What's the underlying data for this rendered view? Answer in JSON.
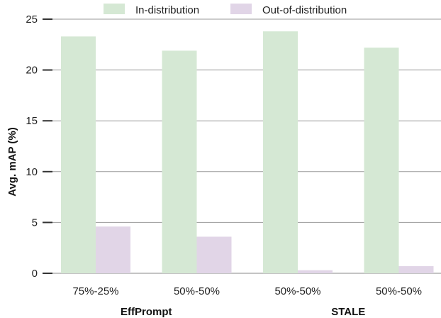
{
  "chart_data": {
    "type": "bar",
    "categories": [
      "75%-25%",
      "50%-50%",
      "50%-50%",
      "50%-50%"
    ],
    "groups": [
      {
        "label": "EffPrompt",
        "categories": [
          0,
          1
        ]
      },
      {
        "label": "STALE",
        "categories": [
          2,
          3
        ]
      }
    ],
    "series": [
      {
        "name": "In-distribution",
        "color": "#d5e8d4",
        "values": [
          23.3,
          21.9,
          23.8,
          22.2
        ]
      },
      {
        "name": "Out-of-distribution",
        "color": "#e1d5e7",
        "values": [
          4.6,
          3.6,
          0.3,
          0.7
        ]
      }
    ],
    "ylabel": "Avg. mAP (%)",
    "ylim": [
      0,
      25
    ],
    "yticks": [
      0,
      5,
      10,
      15,
      20,
      25
    ],
    "grid": true,
    "legend": "top-center"
  }
}
